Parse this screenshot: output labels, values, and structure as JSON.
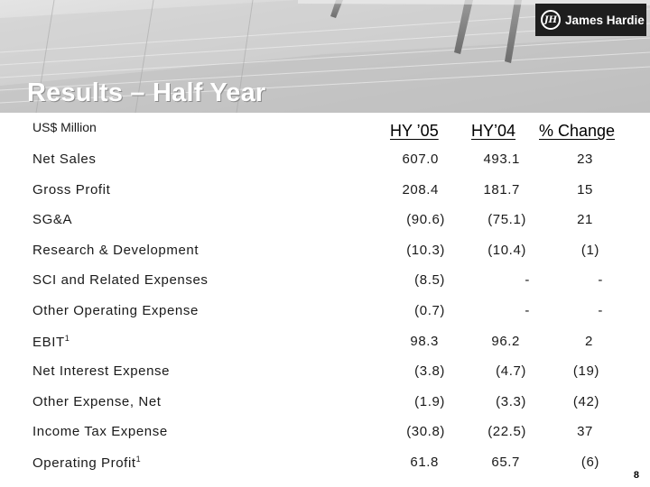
{
  "brand": {
    "logo_text": "James Hardie"
  },
  "title": "Results – Half Year",
  "table": {
    "units_label": "US$ Million",
    "columns": [
      "HY ’05",
      "HY’04",
      "% Change"
    ],
    "rows": [
      {
        "label": "Net Sales",
        "hy05": "607.0",
        "hy04": "493.1",
        "pct": "23"
      },
      {
        "label": "Gross Profit",
        "hy05": "208.4",
        "hy04": "181.7",
        "pct": "15"
      },
      {
        "label": "SG&A",
        "hy05": "(90.6)",
        "hy04": "(75.1)",
        "pct": "21"
      },
      {
        "label": "Research & Development",
        "hy05": "(10.3)",
        "hy04": "(10.4)",
        "pct": "(1)"
      },
      {
        "label": "SCI and Related Expenses",
        "hy05": "(8.5)",
        "hy04": "-",
        "pct": "-"
      },
      {
        "label": "Other Operating Expense",
        "hy05": "(0.7)",
        "hy04": "-",
        "pct": "-"
      },
      {
        "label": "EBIT",
        "sup": "1",
        "hy05": "98.3",
        "hy04": "96.2",
        "pct": "2"
      },
      {
        "label": "Net Interest Expense",
        "hy05": "(3.8)",
        "hy04": "(4.7)",
        "pct": "(19)"
      },
      {
        "label": "Other Expense, Net",
        "hy05": "(1.9)",
        "hy04": "(3.3)",
        "pct": "(42)"
      },
      {
        "label": "Income Tax Expense",
        "hy05": "(30.8)",
        "hy04": "(22.5)",
        "pct": "37"
      },
      {
        "label": "Operating Profit",
        "sup": "1",
        "hy05": "61.8",
        "hy04": "65.7",
        "pct": "(6)"
      }
    ]
  },
  "page_number": "8"
}
